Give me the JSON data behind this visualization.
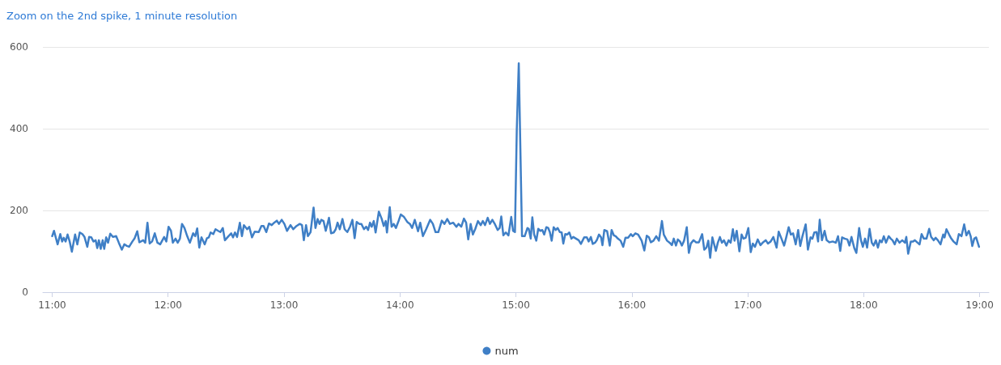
{
  "chart_data": {
    "type": "line",
    "title": "Zoom on the 2nd spike, 1 minute resolution",
    "x": [
      11.0,
      11.016,
      11.047,
      11.07,
      11.086,
      11.1,
      11.116,
      11.133,
      11.151,
      11.17,
      11.198,
      11.217,
      11.238,
      11.261,
      11.279,
      11.303,
      11.319,
      11.338,
      11.356,
      11.375,
      11.389,
      11.403,
      11.419,
      11.436,
      11.449,
      11.466,
      11.482,
      11.501,
      11.524,
      11.552,
      11.575,
      11.601,
      11.622,
      11.645,
      11.664,
      11.692,
      11.71,
      11.734,
      11.752,
      11.785,
      11.803,
      11.822,
      11.841,
      11.862,
      11.885,
      11.908,
      11.932,
      11.966,
      11.985,
      12.004,
      12.025,
      12.041,
      12.064,
      12.083,
      12.102,
      12.12,
      12.141,
      12.165,
      12.188,
      12.216,
      12.234,
      12.251,
      12.269,
      12.288,
      12.316,
      12.335,
      12.351,
      12.367,
      12.39,
      12.409,
      12.432,
      12.451,
      12.472,
      12.49,
      12.521,
      12.544,
      12.56,
      12.577,
      12.595,
      12.619,
      12.637,
      12.654,
      12.682,
      12.7,
      12.724,
      12.747,
      12.782,
      12.805,
      12.824,
      12.847,
      12.87,
      12.894,
      12.915,
      12.938,
      12.956,
      12.98,
      13.003,
      13.026,
      13.056,
      13.08,
      13.108,
      13.136,
      13.155,
      13.171,
      13.19,
      13.206,
      13.229,
      13.255,
      13.271,
      13.29,
      13.306,
      13.322,
      13.341,
      13.36,
      13.388,
      13.406,
      13.429,
      13.446,
      13.462,
      13.481,
      13.504,
      13.523,
      13.546,
      13.569,
      13.59,
      13.609,
      13.627,
      13.648,
      13.667,
      13.69,
      13.709,
      13.725,
      13.742,
      13.756,
      13.774,
      13.79,
      13.818,
      13.842,
      13.86,
      13.877,
      13.888,
      13.912,
      13.928,
      13.946,
      13.965,
      13.988,
      14.007,
      14.035,
      14.063,
      14.086,
      14.105,
      14.128,
      14.156,
      14.175,
      14.198,
      14.226,
      14.261,
      14.284,
      14.307,
      14.331,
      14.361,
      14.384,
      14.408,
      14.431,
      14.459,
      14.487,
      14.505,
      14.529,
      14.552,
      14.571,
      14.589,
      14.61,
      14.629,
      14.65,
      14.673,
      14.697,
      14.715,
      14.734,
      14.757,
      14.776,
      14.797,
      14.82,
      14.843,
      14.86,
      14.874,
      14.892,
      14.913,
      14.936,
      14.96,
      14.976,
      14.992,
      15.008,
      15.025,
      15.053,
      15.076,
      15.1,
      15.111,
      15.128,
      15.142,
      15.158,
      15.176,
      15.193,
      15.211,
      15.228,
      15.244,
      15.263,
      15.279,
      15.293,
      15.309,
      15.326,
      15.344,
      15.36,
      15.379,
      15.395,
      15.409,
      15.426,
      15.442,
      15.461,
      15.479,
      15.496,
      15.519,
      15.542,
      15.561,
      15.589,
      15.612,
      15.628,
      15.647,
      15.663,
      15.682,
      15.698,
      15.717,
      15.735,
      15.747,
      15.763,
      15.787,
      15.81,
      15.826,
      15.845,
      15.861,
      15.88,
      15.903,
      15.926,
      15.945,
      15.968,
      15.992,
      16.008,
      16.031,
      16.055,
      16.085,
      16.108,
      16.129,
      16.148,
      16.164,
      16.187,
      16.211,
      16.234,
      16.26,
      16.276,
      16.304,
      16.327,
      16.346,
      16.362,
      16.381,
      16.397,
      16.416,
      16.432,
      16.451,
      16.474,
      16.492,
      16.509,
      16.532,
      16.555,
      16.579,
      16.607,
      16.625,
      16.644,
      16.66,
      16.676,
      16.695,
      16.725,
      16.742,
      16.76,
      16.777,
      16.795,
      16.816,
      16.835,
      16.853,
      16.872,
      16.886,
      16.905,
      16.928,
      16.947,
      16.963,
      16.982,
      17.005,
      17.026,
      17.044,
      17.063,
      17.086,
      17.11,
      17.132,
      17.156,
      17.174,
      17.198,
      17.221,
      17.249,
      17.267,
      17.291,
      17.314,
      17.332,
      17.353,
      17.372,
      17.391,
      17.414,
      17.435,
      17.453,
      17.472,
      17.5,
      17.519,
      17.542,
      17.558,
      17.574,
      17.593,
      17.607,
      17.621,
      17.64,
      17.663,
      17.681,
      17.705,
      17.733,
      17.76,
      17.779,
      17.798,
      17.814,
      17.837,
      17.86,
      17.877,
      17.895,
      17.919,
      17.937,
      17.961,
      17.977,
      17.993,
      18.012,
      18.03,
      18.051,
      18.07,
      18.086,
      18.105,
      18.123,
      18.14,
      18.156,
      18.174,
      18.193,
      18.216,
      18.233,
      18.249,
      18.268,
      18.286,
      18.309,
      18.333,
      18.356,
      18.368,
      18.384,
      18.407,
      18.426,
      18.442,
      18.465,
      18.482,
      18.5,
      18.519,
      18.542,
      18.565,
      18.582,
      18.605,
      18.621,
      18.64,
      18.663,
      18.686,
      18.698,
      18.714,
      18.737,
      18.756,
      18.775,
      18.802,
      18.821,
      18.844,
      18.867,
      18.886,
      18.907,
      18.923,
      18.937,
      18.954,
      18.97,
      18.995
    ],
    "series": [
      {
        "name": "num",
        "color": "#3f7fc6",
        "values": [
          137,
          150,
          117,
          142,
          124,
          133,
          124,
          141,
          124,
          99,
          141,
          117,
          146,
          142,
          135,
          111,
          135,
          134,
          124,
          127,
          108,
          127,
          106,
          127,
          106,
          134,
          121,
          143,
          135,
          137,
          121,
          104,
          117,
          113,
          111,
          124,
          131,
          149,
          122,
          127,
          121,
          170,
          119,
          124,
          144,
          121,
          117,
          135,
          124,
          160,
          150,
          121,
          131,
          121,
          131,
          167,
          157,
          137,
          121,
          144,
          137,
          156,
          109,
          134,
          117,
          132,
          134,
          146,
          142,
          154,
          150,
          147,
          157,
          127,
          137,
          144,
          134,
          146,
          135,
          170,
          137,
          164,
          154,
          160,
          134,
          148,
          147,
          162,
          162,
          147,
          168,
          164,
          170,
          175,
          167,
          177,
          167,
          150,
          164,
          154,
          162,
          167,
          164,
          127,
          164,
          137,
          147,
          207,
          157,
          179,
          167,
          177,
          174,
          150,
          182,
          144,
          146,
          154,
          170,
          154,
          179,
          154,
          147,
          160,
          177,
          132,
          172,
          167,
          167,
          154,
          160,
          152,
          170,
          160,
          174,
          146,
          197,
          180,
          162,
          174,
          146,
          208,
          160,
          167,
          157,
          174,
          190,
          184,
          172,
          167,
          157,
          177,
          149,
          170,
          137,
          154,
          177,
          167,
          147,
          147,
          175,
          167,
          179,
          167,
          170,
          160,
          167,
          160,
          180,
          170,
          129,
          167,
          141,
          155,
          174,
          164,
          174,
          164,
          182,
          167,
          177,
          166,
          152,
          157,
          185,
          139,
          146,
          139,
          184,
          150,
          147,
          400,
          560,
          137,
          137,
          157,
          155,
          131,
          183,
          141,
          126,
          155,
          150,
          152,
          141,
          159,
          157,
          147,
          126,
          159,
          152,
          157,
          147,
          146,
          119,
          142,
          141,
          146,
          131,
          135,
          131,
          127,
          118,
          134,
          134,
          124,
          135,
          118,
          121,
          127,
          141,
          134,
          115,
          152,
          149,
          114,
          152,
          139,
          137,
          131,
          126,
          111,
          133,
          133,
          142,
          137,
          144,
          141,
          126,
          102,
          138,
          134,
          122,
          126,
          137,
          126,
          174,
          141,
          126,
          121,
          115,
          131,
          114,
          129,
          124,
          114,
          126,
          159,
          96,
          119,
          127,
          122,
          122,
          142,
          104,
          109,
          126,
          84,
          134,
          101,
          121,
          135,
          121,
          127,
          114,
          127,
          121,
          154,
          126,
          150,
          100,
          141,
          131,
          133,
          157,
          98,
          119,
          111,
          129,
          115,
          122,
          127,
          119,
          124,
          135,
          109,
          148,
          131,
          114,
          134,
          159,
          141,
          144,
          117,
          152,
          113,
          137,
          166,
          104,
          134,
          131,
          146,
          147,
          124,
          177,
          127,
          150,
          127,
          122,
          124,
          121,
          137,
          101,
          134,
          131,
          129,
          114,
          135,
          108,
          96,
          157,
          127,
          111,
          131,
          109,
          155,
          121,
          114,
          127,
          109,
          127,
          122,
          137,
          121,
          137,
          131,
          127,
          117,
          131,
          121,
          127,
          121,
          135,
          94,
          124,
          124,
          127,
          121,
          117,
          142,
          131,
          131,
          155,
          135,
          127,
          133,
          127,
          117,
          141,
          134,
          154,
          141,
          131,
          124,
          117,
          142,
          137,
          166,
          139,
          150,
          137,
          113,
          131,
          134,
          111
        ]
      }
    ],
    "xlim": [
      10.92,
      19.08
    ],
    "xticks": [
      {
        "value": 11,
        "label": "11:00"
      },
      {
        "value": 12,
        "label": "12:00"
      },
      {
        "value": 13,
        "label": "13:00"
      },
      {
        "value": 14,
        "label": "14:00"
      },
      {
        "value": 15,
        "label": "15:00"
      },
      {
        "value": 16,
        "label": "16:00"
      },
      {
        "value": 17,
        "label": "17:00"
      },
      {
        "value": 18,
        "label": "18:00"
      },
      {
        "value": 19,
        "label": "19:00"
      }
    ],
    "ylim": [
      0,
      600
    ],
    "yticks": [
      0,
      200,
      400,
      600
    ],
    "grid": "y",
    "legend": "bottom",
    "marker": "none",
    "line_style": "solid"
  }
}
